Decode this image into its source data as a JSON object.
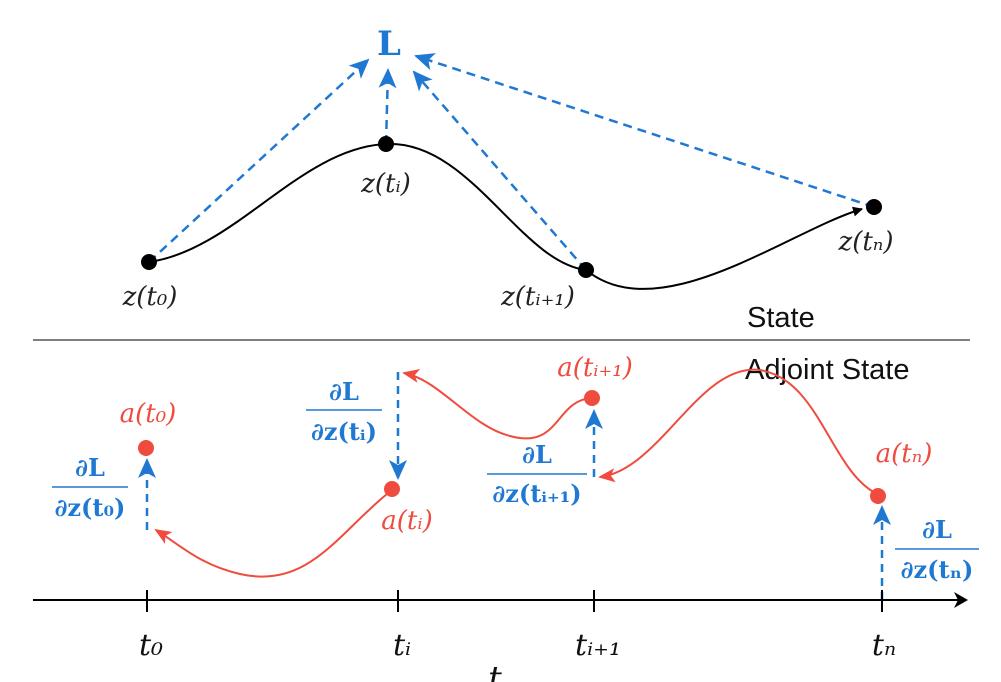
{
  "colors": {
    "state_curve": "#000000",
    "adjoint_curve": "#ef4c3f",
    "gradient_arrows": "#1f78d1",
    "divider": "#333333"
  },
  "loss_label": "L",
  "sections": {
    "state": "State",
    "adjoint": "Adjoint State"
  },
  "state_points": [
    {
      "label": "z(t₀)"
    },
    {
      "label": "z(tᵢ)"
    },
    {
      "label": "z(tᵢ₊₁)"
    },
    {
      "label": "z(tₙ)"
    }
  ],
  "adjoint_points": [
    {
      "label": "a(t₀)"
    },
    {
      "label": "a(tᵢ)"
    },
    {
      "label": "a(tᵢ₊₁)"
    },
    {
      "label": "a(tₙ)"
    }
  ],
  "gradients": [
    {
      "numerator": "∂L",
      "denominator": "∂z(t₀)"
    },
    {
      "numerator": "∂L",
      "denominator": "∂z(tᵢ)"
    },
    {
      "numerator": "∂L",
      "denominator": "∂z(tᵢ₊₁)"
    },
    {
      "numerator": "∂L",
      "denominator": "∂z(tₙ)"
    }
  ],
  "time_axis": {
    "label": "t",
    "ticks": [
      "t₀",
      "tᵢ",
      "tᵢ₊₁",
      "tₙ"
    ]
  }
}
